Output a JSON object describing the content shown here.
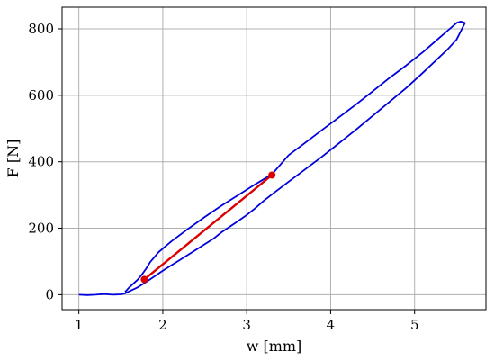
{
  "chart_data": {
    "type": "line",
    "title": "",
    "xlabel": "w [mm]",
    "ylabel": "F [N]",
    "xlim": [
      0.8,
      5.85
    ],
    "ylim": [
      -45,
      865
    ],
    "xticks": [
      1,
      2,
      3,
      4,
      5
    ],
    "yticks": [
      0,
      200,
      400,
      600,
      800
    ],
    "grid": true,
    "series": [
      {
        "color": "#0000dd",
        "points": [
          [
            1.0,
            0
          ],
          [
            1.1,
            -1
          ],
          [
            1.2,
            0
          ],
          [
            1.3,
            2
          ],
          [
            1.4,
            0
          ],
          [
            1.5,
            1
          ],
          [
            1.55,
            4
          ],
          [
            1.6,
            10
          ],
          [
            1.7,
            22
          ],
          [
            1.8,
            38
          ],
          [
            1.9,
            55
          ],
          [
            2.0,
            72
          ],
          [
            2.1,
            88
          ],
          [
            2.2,
            104
          ],
          [
            2.3,
            120
          ],
          [
            2.4,
            136
          ],
          [
            2.5,
            152
          ],
          [
            2.6,
            168
          ],
          [
            2.7,
            188
          ],
          [
            2.8,
            205
          ],
          [
            2.9,
            222
          ],
          [
            3.0,
            240
          ],
          [
            3.1,
            260
          ],
          [
            3.2,
            282
          ],
          [
            3.3,
            302
          ],
          [
            3.5,
            340
          ],
          [
            3.7,
            378
          ],
          [
            3.9,
            416
          ],
          [
            4.1,
            456
          ],
          [
            4.3,
            496
          ],
          [
            4.5,
            538
          ],
          [
            4.7,
            580
          ],
          [
            4.9,
            622
          ],
          [
            5.1,
            668
          ],
          [
            5.3,
            716
          ],
          [
            5.4,
            740
          ],
          [
            5.5,
            768
          ],
          [
            5.6,
            818
          ],
          [
            5.55,
            822
          ],
          [
            5.5,
            818
          ],
          [
            5.4,
            796
          ],
          [
            5.3,
            774
          ],
          [
            5.1,
            730
          ],
          [
            4.9,
            690
          ],
          [
            4.7,
            652
          ],
          [
            4.5,
            612
          ],
          [
            4.3,
            572
          ],
          [
            4.1,
            534
          ],
          [
            3.9,
            496
          ],
          [
            3.7,
            458
          ],
          [
            3.5,
            420
          ],
          [
            3.3,
            362
          ],
          [
            3.1,
            332
          ],
          [
            2.9,
            300
          ],
          [
            2.7,
            268
          ],
          [
            2.5,
            234
          ],
          [
            2.3,
            198
          ],
          [
            2.1,
            160
          ],
          [
            1.95,
            128
          ],
          [
            1.85,
            98
          ],
          [
            1.8,
            78
          ],
          [
            1.75,
            60
          ],
          [
            1.7,
            45
          ],
          [
            1.6,
            22
          ],
          [
            1.55,
            8
          ]
        ]
      },
      {
        "color": "#dd0000",
        "points": [
          [
            1.78,
            46
          ],
          [
            3.3,
            360
          ]
        ],
        "markers": true
      }
    ]
  }
}
